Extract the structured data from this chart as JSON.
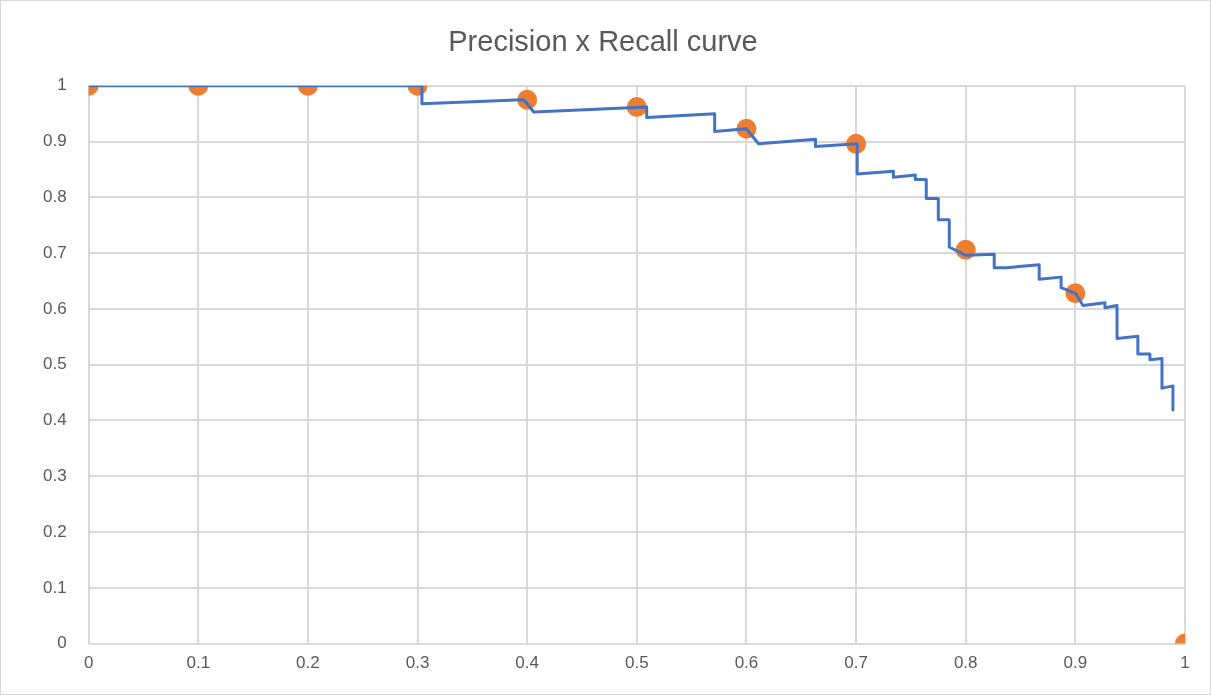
{
  "chart_data": {
    "type": "scatter",
    "title": "Precision x Recall curve",
    "xlim": [
      0,
      1
    ],
    "ylim": [
      0,
      1
    ],
    "xticks": [
      0,
      0.1,
      0.2,
      0.3,
      0.4,
      0.5,
      0.6,
      0.7,
      0.8,
      0.9,
      1
    ],
    "yticks": [
      0,
      0.1,
      0.2,
      0.3,
      0.4,
      0.5,
      0.6,
      0.7,
      0.8,
      0.9,
      1
    ],
    "grid": true,
    "legend": false,
    "series": [
      {
        "type": "line",
        "color": "#4472c4",
        "marker": "none",
        "x": [
          0,
          0.304,
          0.304,
          0.397,
          0.406,
          0.509,
          0.509,
          0.571,
          0.571,
          0.6,
          0.611,
          0.663,
          0.663,
          0.701,
          0.701,
          0.734,
          0.734,
          0.754,
          0.754,
          0.764,
          0.764,
          0.775,
          0.775,
          0.785,
          0.785,
          0.8,
          0.826,
          0.826,
          0.837,
          0.867,
          0.867,
          0.887,
          0.887,
          0.9,
          0.907,
          0.927,
          0.927,
          0.938,
          0.938,
          0.957,
          0.957,
          0.968,
          0.968,
          0.979,
          0.979,
          0.989,
          0.989
        ],
        "values": [
          1,
          1,
          0.968,
          0.975,
          0.953,
          0.962,
          0.943,
          0.95,
          0.918,
          0.923,
          0.896,
          0.904,
          0.891,
          0.896,
          0.842,
          0.847,
          0.836,
          0.84,
          0.832,
          0.832,
          0.798,
          0.798,
          0.76,
          0.76,
          0.711,
          0.696,
          0.698,
          0.674,
          0.674,
          0.679,
          0.653,
          0.657,
          0.638,
          0.628,
          0.606,
          0.611,
          0.602,
          0.606,
          0.547,
          0.551,
          0.519,
          0.519,
          0.509,
          0.511,
          0.458,
          0.462,
          0.419
        ]
      },
      {
        "type": "scatter",
        "color": "#ed7d31",
        "marker": "circle",
        "x": [
          0,
          0.1,
          0.2,
          0.3,
          0.4,
          0.5,
          0.6,
          0.7,
          0.8,
          0.9,
          1
        ],
        "values": [
          1,
          1,
          1,
          1,
          0.975,
          0.962,
          0.923,
          0.896,
          0.706,
          0.628,
          0
        ]
      }
    ]
  }
}
